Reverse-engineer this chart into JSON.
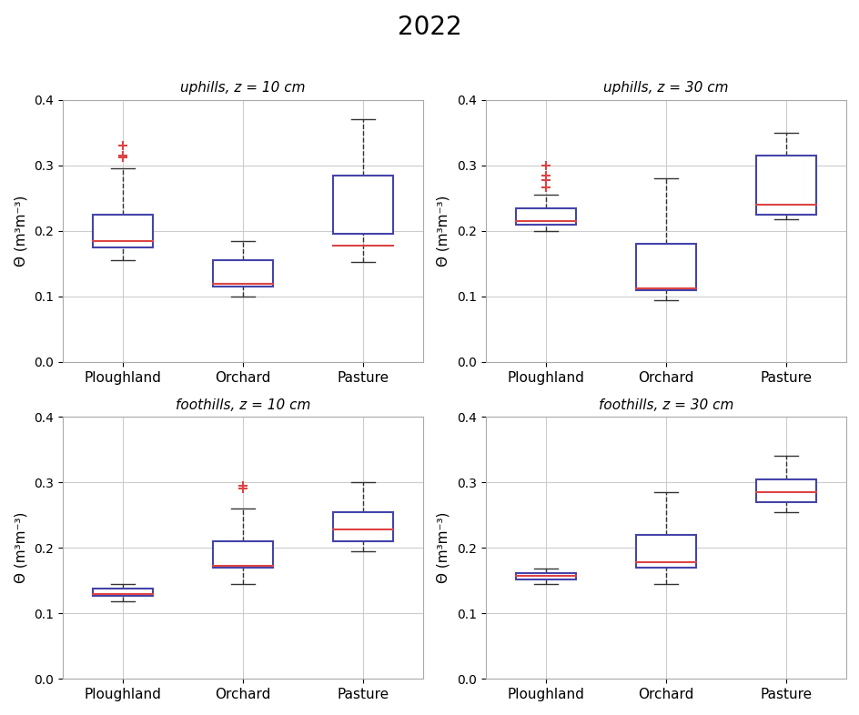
{
  "title": "2022",
  "title_fontsize": 20,
  "categories": [
    "Ploughland",
    "Orchard",
    "Pasture"
  ],
  "ylabel": "Θ (m³m⁻³)",
  "ylim": [
    0,
    0.4
  ],
  "yticks": [
    0,
    0.1,
    0.2,
    0.3,
    0.4
  ],
  "box_color": "#4444aa",
  "median_color": "#dd4444",
  "whisker_color": "#333333",
  "flier_color": "#dd4444",
  "background_color": "#ffffff",
  "grid_color": "#cccccc",
  "subplots": [
    {
      "title": "uphills, z = 10 cm",
      "title_style": "italic",
      "data": [
        {
          "q1": 0.175,
          "median": 0.185,
          "q3": 0.225,
          "whislo": 0.155,
          "whishi": 0.295,
          "fliers": [
            0.312,
            0.315,
            0.33
          ]
        },
        {
          "q1": 0.115,
          "median": 0.12,
          "q3": 0.155,
          "whislo": 0.1,
          "whishi": 0.185,
          "fliers": []
        },
        {
          "q1": 0.195,
          "median": 0.178,
          "q3": 0.285,
          "whislo": 0.152,
          "whishi": 0.37,
          "fliers": []
        }
      ]
    },
    {
      "title": "uphills, z = 30 cm",
      "title_style": "italic",
      "data": [
        {
          "q1": 0.21,
          "median": 0.215,
          "q3": 0.235,
          "whislo": 0.2,
          "whishi": 0.256,
          "fliers": [
            0.267,
            0.278,
            0.285,
            0.3
          ]
        },
        {
          "q1": 0.11,
          "median": 0.112,
          "q3": 0.18,
          "whislo": 0.095,
          "whishi": 0.28,
          "fliers": []
        },
        {
          "q1": 0.225,
          "median": 0.24,
          "q3": 0.315,
          "whislo": 0.218,
          "whishi": 0.35,
          "fliers": []
        }
      ]
    },
    {
      "title": "foothills, z = 10 cm",
      "title_style": "italic",
      "data": [
        {
          "q1": 0.127,
          "median": 0.13,
          "q3": 0.138,
          "whislo": 0.118,
          "whishi": 0.145,
          "fliers": []
        },
        {
          "q1": 0.17,
          "median": 0.172,
          "q3": 0.21,
          "whislo": 0.145,
          "whishi": 0.26,
          "fliers": [
            0.29,
            0.295
          ]
        },
        {
          "q1": 0.21,
          "median": 0.228,
          "q3": 0.255,
          "whislo": 0.195,
          "whishi": 0.3,
          "fliers": []
        }
      ]
    },
    {
      "title": "foothills, z = 30 cm",
      "title_style": "italic",
      "data": [
        {
          "q1": 0.152,
          "median": 0.157,
          "q3": 0.162,
          "whislo": 0.145,
          "whishi": 0.168,
          "fliers": []
        },
        {
          "q1": 0.17,
          "median": 0.178,
          "q3": 0.22,
          "whislo": 0.145,
          "whishi": 0.285,
          "fliers": []
        },
        {
          "q1": 0.27,
          "median": 0.285,
          "q3": 0.305,
          "whislo": 0.255,
          "whishi": 0.34,
          "fliers": []
        }
      ]
    }
  ]
}
